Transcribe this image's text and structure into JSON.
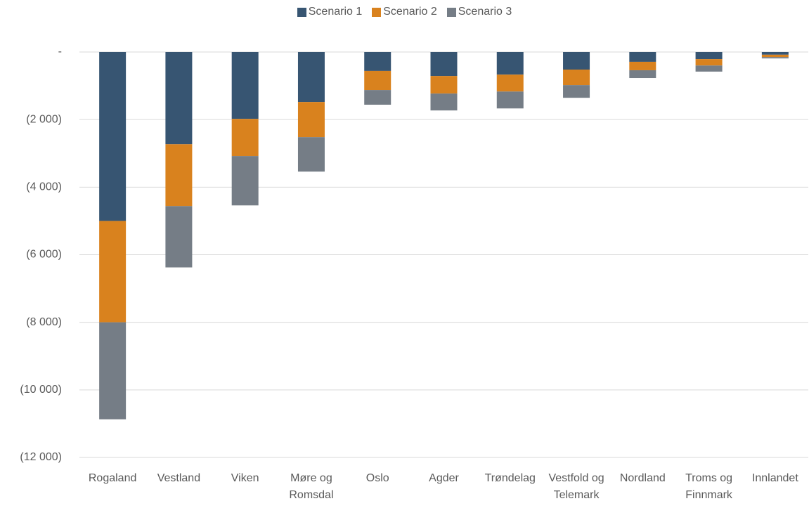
{
  "chart_data": {
    "type": "stacked-bar",
    "categories": [
      "Rogaland",
      "Vestland",
      "Viken",
      "Møre og Romsdal",
      "Oslo",
      "Agder",
      "Trøndelag",
      "Vestfold og Telemark",
      "Nordland",
      "Troms og Finnmark",
      "Innlandet"
    ],
    "series": [
      {
        "name": "Scenario 1",
        "color": "#375572",
        "values": [
          -5000,
          -2730,
          -1980,
          -1480,
          -560,
          -710,
          -670,
          -520,
          -290,
          -210,
          -80
        ]
      },
      {
        "name": "Scenario 2",
        "color": "#d9821e",
        "values": [
          -3000,
          -1830,
          -1100,
          -1040,
          -565,
          -520,
          -500,
          -460,
          -250,
          -190,
          -70
        ]
      },
      {
        "name": "Scenario 3",
        "color": "#757d86",
        "values": [
          -2870,
          -1815,
          -1460,
          -1020,
          -435,
          -500,
          -500,
          -375,
          -230,
          -180,
          -40
        ]
      }
    ],
    "ylim": [
      -12000,
      0
    ],
    "yticks": [
      {
        "value": 0,
        "label": "-"
      },
      {
        "value": -2000,
        "label": "(2 000)"
      },
      {
        "value": -4000,
        "label": "(4 000)"
      },
      {
        "value": -6000,
        "label": "(6 000)"
      },
      {
        "value": -8000,
        "label": "(8 000)"
      },
      {
        "value": -10000,
        "label": "(10 000)"
      },
      {
        "value": -12000,
        "label": "(12 000)"
      }
    ],
    "grid": true,
    "legend": "top"
  }
}
